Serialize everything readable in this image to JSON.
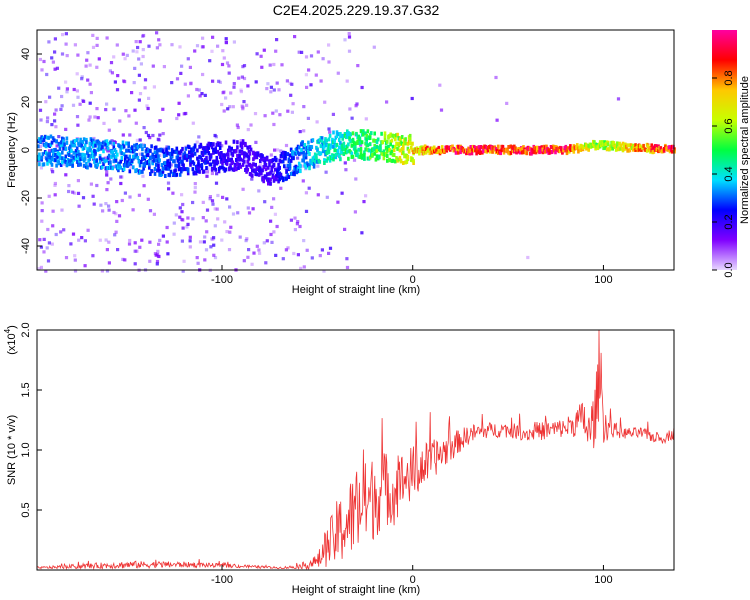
{
  "figure_title": "C2E4.2025.229.19.37.G32",
  "chart_data": [
    {
      "type": "heatmap",
      "xlabel": "Height of straight line (km)",
      "ylabel": "Frequency (Hz)",
      "xlim": [
        -197,
        137
      ],
      "ylim": [
        -50,
        50
      ],
      "xticks": [
        -100,
        0,
        100
      ],
      "xtick_labels": [
        "-100",
        "0",
        "100"
      ],
      "yticks": [
        -40,
        -20,
        0,
        20,
        40
      ],
      "ytick_labels": [
        "-40",
        "-20",
        "0",
        "20",
        "40"
      ],
      "colorbar": {
        "label": "Normalized spectral amplitude",
        "range": [
          0,
          1
        ],
        "ticks": [
          0.0,
          0.2,
          0.4,
          0.6,
          0.8
        ],
        "tick_labels": [
          "0.0",
          "0.2",
          "0.4",
          "0.6",
          "0.8"
        ],
        "colormap": [
          "#e8d8ff",
          "#8000ff",
          "#0000ff",
          "#00e0ff",
          "#00ff40",
          "#c8ff00",
          "#ffc800",
          "#ff0000",
          "#ff00a0"
        ]
      },
      "ridge": {
        "description_points_x": [
          -197,
          -160,
          -130,
          -90,
          -75,
          -60,
          -40,
          -20,
          0,
          20,
          80,
          95,
          137
        ],
        "center_hz": [
          0,
          -2,
          -5,
          -2,
          -10,
          -3,
          2,
          2,
          0,
          0,
          0,
          2,
          0
        ],
        "peak_amplitude": [
          0.35,
          0.35,
          0.3,
          0.2,
          0.2,
          0.35,
          0.45,
          0.55,
          0.75,
          0.95,
          0.95,
          0.6,
          0.95
        ]
      },
      "grid": false
    },
    {
      "type": "line",
      "xlabel": "Height of straight line (km)",
      "ylabel": "SNR (10 * v/v)",
      "scale_label": "(x10",
      "scale_exp": "4",
      "scale_close": ")",
      "xlim": [
        -197,
        137
      ],
      "ylim": [
        0,
        2.0
      ],
      "xticks": [
        -100,
        0,
        100
      ],
      "xtick_labels": [
        "-100",
        "0",
        "100"
      ],
      "yticks": [
        0.5,
        1.0,
        1.5,
        2.0
      ],
      "ytick_labels": [
        "0.5",
        "1.0",
        "1.5",
        "2.0"
      ],
      "color": "#ee3333",
      "series": [
        {
          "x": [
            -197,
            -150,
            -120,
            -100,
            -70,
            -60,
            -50,
            -45,
            -40,
            -35,
            -30,
            -25,
            -20,
            -15,
            -10,
            -5,
            0,
            5,
            10,
            15,
            20,
            25,
            30,
            40,
            50,
            60,
            70,
            80,
            85,
            90,
            92,
            95,
            97,
            98,
            100,
            105,
            110,
            120,
            130,
            137
          ],
          "y": [
            0.02,
            0.05,
            0.05,
            0.04,
            0.02,
            0.03,
            0.08,
            0.22,
            0.35,
            0.45,
            0.55,
            0.62,
            0.68,
            0.75,
            0.7,
            0.8,
            0.85,
            0.9,
            0.95,
            1.0,
            1.05,
            1.1,
            1.15,
            1.18,
            1.18,
            1.15,
            1.18,
            1.2,
            1.25,
            1.3,
            1.15,
            1.3,
            1.5,
            1.9,
            1.25,
            1.18,
            1.15,
            1.15,
            1.1,
            1.15
          ],
          "noise": [
            0.01,
            0.04,
            0.03,
            0.02,
            0.01,
            0.02,
            0.08,
            0.2,
            0.35,
            0.4,
            0.45,
            0.45,
            0.45,
            0.4,
            0.35,
            0.3,
            0.3,
            0.25,
            0.2,
            0.18,
            0.15,
            0.12,
            0.1,
            0.08,
            0.08,
            0.08,
            0.1,
            0.1,
            0.15,
            0.2,
            0.25,
            0.3,
            0.4,
            0.5,
            0.2,
            0.08,
            0.06,
            0.06,
            0.06,
            0.06
          ]
        }
      ],
      "grid": false
    }
  ]
}
